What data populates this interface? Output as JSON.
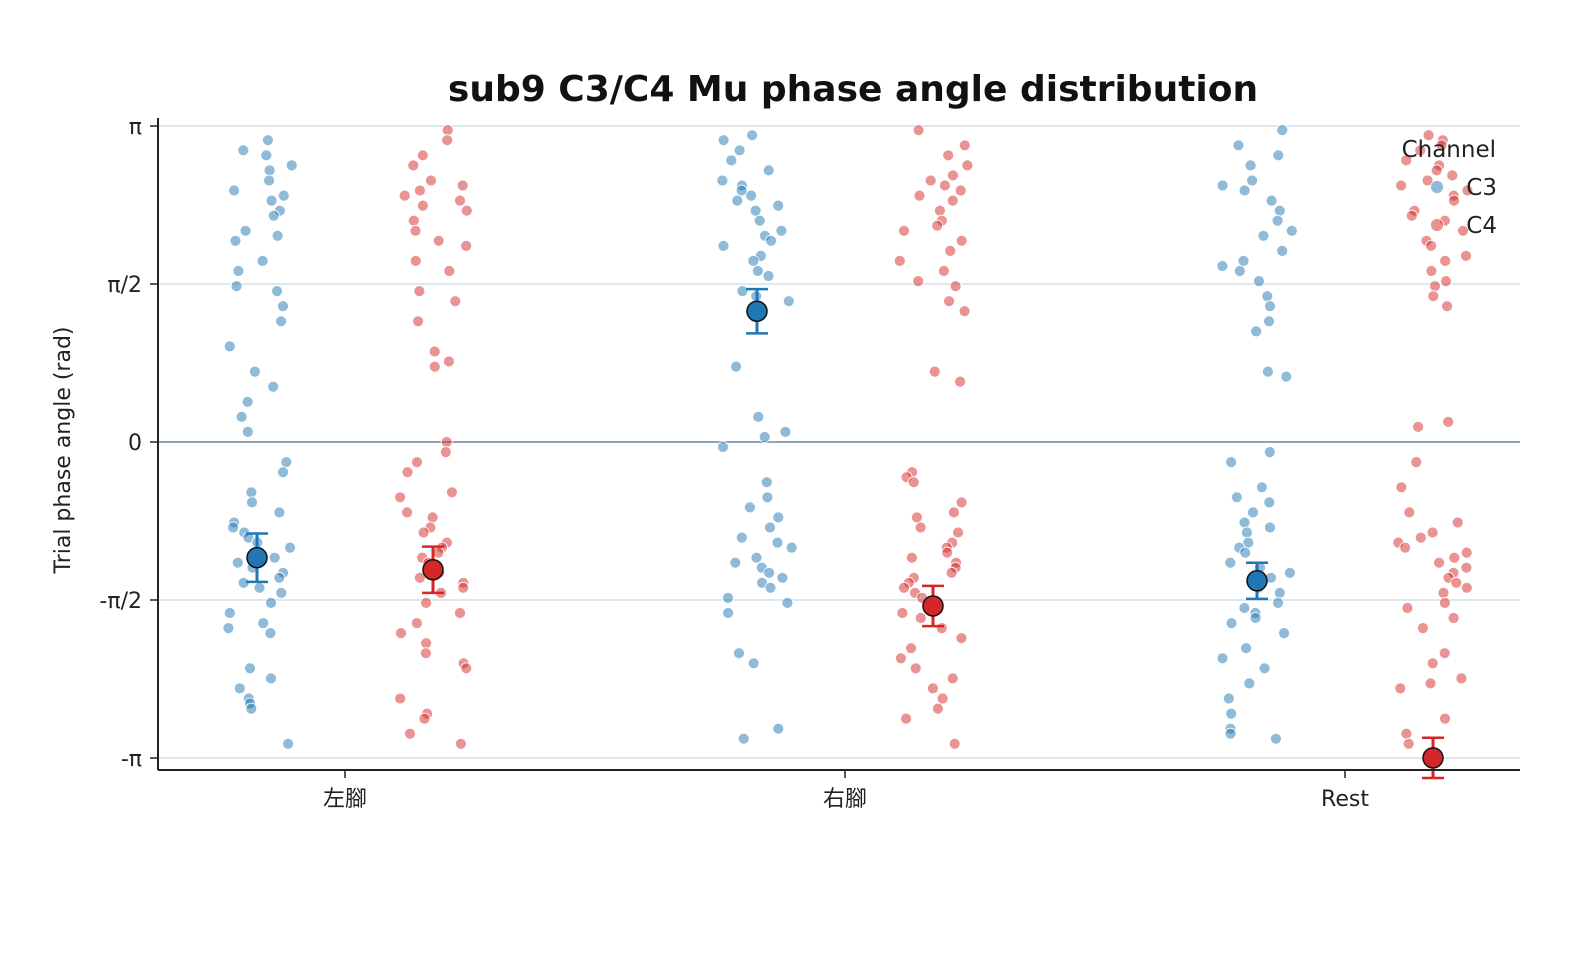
{
  "chart_data": {
    "type": "scatter",
    "title": "sub9 C3/C4 Mu phase angle distribution",
    "xlabel": "",
    "ylabel": "Trial phase angle (rad)",
    "categories": [
      "左腳",
      "右腳",
      "Rest"
    ],
    "ylim": [
      -3.2,
      3.2
    ],
    "y_ticks": [
      {
        "value": -3.14159,
        "label": "-π"
      },
      {
        "value": -1.5708,
        "label": "-π/2"
      },
      {
        "value": 0,
        "label": "0"
      },
      {
        "value": 1.5708,
        "label": "π/2"
      },
      {
        "value": 3.14159,
        "label": "π"
      }
    ],
    "grid": "horizontal",
    "legend": {
      "title": "Channel",
      "placement": "top-right"
    },
    "colors": {
      "C3": "#1f77b4",
      "C4": "#d62728",
      "grid": "#d3dfe8",
      "zero_line": "#8fa3b3"
    },
    "series": [
      {
        "name": "C3",
        "means": [
          -1.15,
          1.3,
          -1.38
        ],
        "error": [
          0.24,
          0.22,
          0.18
        ],
        "trials": [
          [
            3.0,
            2.9,
            2.85,
            2.75,
            2.7,
            2.6,
            2.5,
            2.45,
            2.4,
            2.3,
            2.25,
            2.1,
            2.05,
            2.0,
            1.8,
            1.7,
            1.55,
            1.5,
            1.35,
            1.2,
            0.95,
            0.7,
            0.55,
            0.4,
            0.25,
            0.1,
            -0.2,
            -0.3,
            -0.5,
            -0.6,
            -0.7,
            -0.8,
            -0.85,
            -0.9,
            -0.95,
            -1.0,
            -1.05,
            -1.1,
            -1.15,
            -1.2,
            -1.25,
            -1.3,
            -1.35,
            -1.4,
            -1.45,
            -1.5,
            -1.6,
            -1.7,
            -1.8,
            -1.85,
            -1.9,
            -2.25,
            -2.35,
            -2.45,
            -2.55,
            -2.6,
            -2.65,
            -3.0
          ],
          [
            3.05,
            3.0,
            2.9,
            2.8,
            2.7,
            2.6,
            2.55,
            2.5,
            2.45,
            2.4,
            2.35,
            2.3,
            2.2,
            2.1,
            2.05,
            2.0,
            1.95,
            1.85,
            1.8,
            1.7,
            1.65,
            1.5,
            1.45,
            1.4,
            0.75,
            0.25,
            0.1,
            0.05,
            -0.05,
            -0.4,
            -0.55,
            -0.65,
            -0.75,
            -0.85,
            -0.95,
            -1.0,
            -1.05,
            -1.15,
            -1.2,
            -1.25,
            -1.3,
            -1.35,
            -1.4,
            -1.45,
            -1.55,
            -1.6,
            -1.7,
            -2.1,
            -2.2,
            -2.85,
            -2.95
          ],
          [
            3.1,
            2.95,
            2.85,
            2.75,
            2.6,
            2.55,
            2.5,
            2.4,
            2.3,
            2.2,
            2.1,
            2.05,
            1.9,
            1.8,
            1.75,
            1.7,
            1.6,
            1.45,
            1.35,
            1.2,
            1.1,
            0.7,
            0.65,
            -0.1,
            -0.2,
            -0.45,
            -0.55,
            -0.6,
            -0.7,
            -0.8,
            -0.85,
            -0.9,
            -1.0,
            -1.05,
            -1.1,
            -1.2,
            -1.25,
            -1.3,
            -1.35,
            -1.45,
            -1.5,
            -1.6,
            -1.65,
            -1.7,
            -1.75,
            -1.8,
            -1.9,
            -2.05,
            -2.15,
            -2.25,
            -2.4,
            -2.55,
            -2.7,
            -2.85,
            -2.9,
            -2.95
          ]
        ]
      },
      {
        "name": "C4",
        "means": [
          -1.27,
          -1.63,
          -3.14
        ],
        "error": [
          0.23,
          0.2,
          0.2
        ],
        "trials": [
          [
            3.1,
            3.0,
            2.85,
            2.75,
            2.6,
            2.55,
            2.5,
            2.45,
            2.4,
            2.35,
            2.3,
            2.2,
            2.1,
            2.0,
            1.95,
            1.8,
            1.7,
            1.5,
            1.4,
            1.2,
            0.9,
            0.8,
            0.75,
            0.0,
            -0.1,
            -0.2,
            -0.3,
            -0.5,
            -0.55,
            -0.7,
            -0.75,
            -0.85,
            -0.9,
            -1.0,
            -1.05,
            -1.1,
            -1.15,
            -1.2,
            -1.25,
            -1.3,
            -1.35,
            -1.4,
            -1.45,
            -1.5,
            -1.6,
            -1.7,
            -1.8,
            -1.9,
            -2.0,
            -2.1,
            -2.2,
            -2.25,
            -2.55,
            -2.7,
            -2.75,
            -2.9,
            -3.0
          ],
          [
            3.1,
            2.95,
            2.85,
            2.75,
            2.65,
            2.6,
            2.55,
            2.5,
            2.45,
            2.4,
            2.3,
            2.2,
            2.15,
            2.1,
            2.0,
            1.9,
            1.8,
            1.7,
            1.6,
            1.55,
            1.4,
            1.3,
            0.7,
            0.6,
            -0.3,
            -0.35,
            -0.4,
            -0.6,
            -0.7,
            -0.75,
            -0.85,
            -0.9,
            -1.0,
            -1.05,
            -1.1,
            -1.15,
            -1.2,
            -1.25,
            -1.3,
            -1.35,
            -1.4,
            -1.45,
            -1.5,
            -1.55,
            -1.6,
            -1.65,
            -1.7,
            -1.75,
            -1.85,
            -1.95,
            -2.05,
            -2.15,
            -2.25,
            -2.35,
            -2.45,
            -2.55,
            -2.65,
            -2.75,
            -3.0
          ],
          [
            3.05,
            3.0,
            2.95,
            2.9,
            2.8,
            2.75,
            2.7,
            2.65,
            2.6,
            2.55,
            2.5,
            2.45,
            2.4,
            2.3,
            2.25,
            2.2,
            2.1,
            2.0,
            1.95,
            1.85,
            1.8,
            1.7,
            1.6,
            1.55,
            1.45,
            1.35,
            0.2,
            0.15,
            -0.2,
            -0.45,
            -0.7,
            -0.8,
            -0.9,
            -0.95,
            -1.0,
            -1.05,
            -1.1,
            -1.15,
            -1.2,
            -1.25,
            -1.3,
            -1.35,
            -1.4,
            -1.45,
            -1.5,
            -1.6,
            -1.65,
            -1.75,
            -1.85,
            -2.1,
            -2.2,
            -2.35,
            -2.4,
            -2.45,
            -2.75,
            -2.9,
            -3.0
          ]
        ]
      }
    ]
  }
}
